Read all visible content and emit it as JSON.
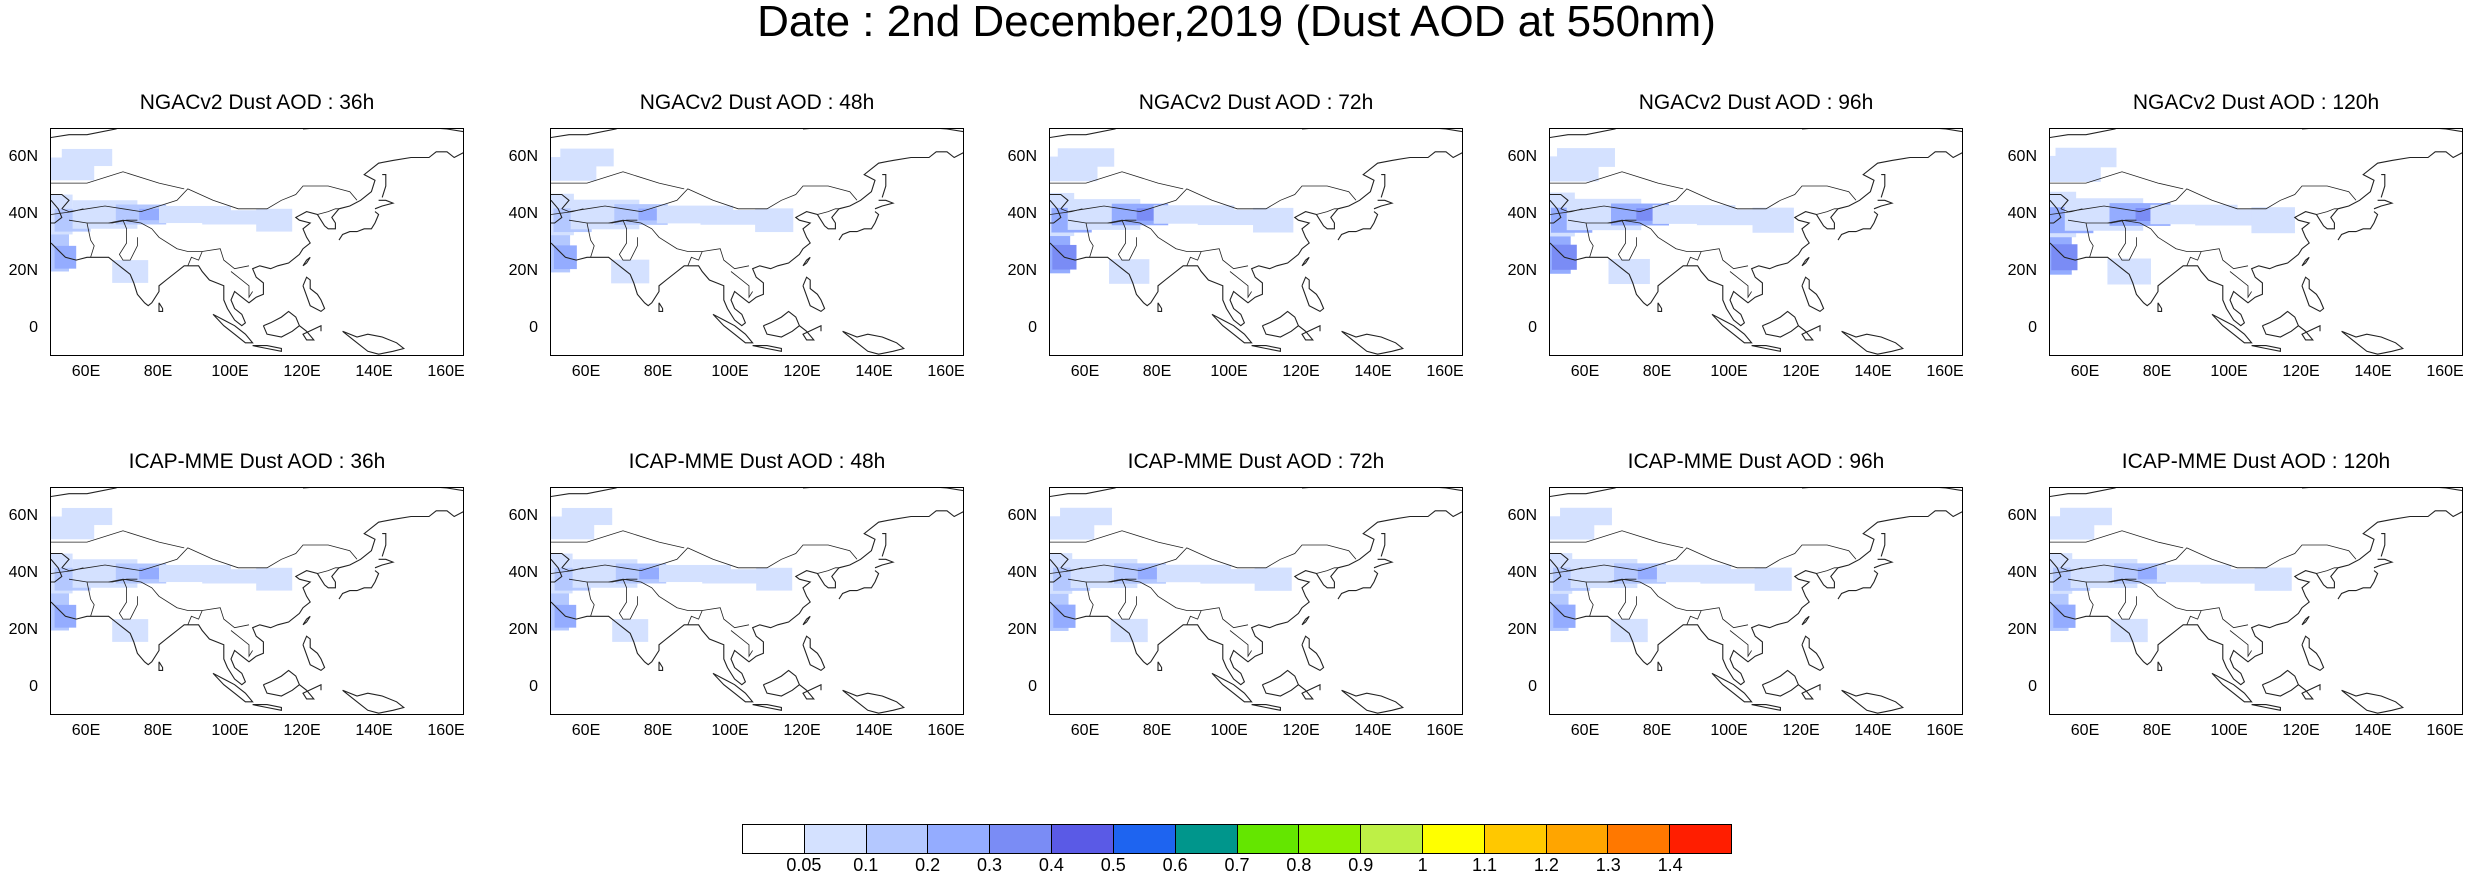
{
  "title": "Date : 2nd December,2019 (Dust AOD at 550nm)",
  "panels": [
    {
      "title": "NGACv2 Dust AOD : 36h",
      "row": 0,
      "col": 0,
      "extent": 1.0
    },
    {
      "title": "NGACv2 Dust AOD : 48h",
      "row": 0,
      "col": 1,
      "extent": 1.2
    },
    {
      "title": "NGACv2 Dust AOD : 72h",
      "row": 0,
      "col": 2,
      "extent": 1.4
    },
    {
      "title": "NGACv2 Dust AOD : 96h",
      "row": 0,
      "col": 3,
      "extent": 1.5
    },
    {
      "title": "NGACv2 Dust AOD : 120h",
      "row": 0,
      "col": 4,
      "extent": 1.7
    },
    {
      "title": "ICAP-MME Dust AOD : 36h",
      "row": 1,
      "col": 0,
      "extent": 1.0
    },
    {
      "title": "ICAP-MME Dust AOD : 48h",
      "row": 1,
      "col": 1,
      "extent": 1.0
    },
    {
      "title": "ICAP-MME Dust AOD : 72h",
      "row": 1,
      "col": 2,
      "extent": 1.1
    },
    {
      "title": "ICAP-MME Dust AOD : 96h",
      "row": 1,
      "col": 3,
      "extent": 1.1
    },
    {
      "title": "ICAP-MME Dust AOD : 120h",
      "row": 1,
      "col": 4,
      "extent": 1.1
    }
  ],
  "lon_ticks": [
    "60E",
    "80E",
    "100E",
    "120E",
    "140E",
    "160E"
  ],
  "lat_ticks": [
    "60N",
    "40N",
    "20N",
    "0"
  ],
  "colorbar": {
    "colors": [
      "#ffffff",
      "#d4e1ff",
      "#b4c8ff",
      "#94acff",
      "#7a8cf5",
      "#5a5ae6",
      "#1e64f0",
      "#00968c",
      "#64e600",
      "#8cf000",
      "#bef046",
      "#ffff00",
      "#ffc800",
      "#ffa500",
      "#ff7800",
      "#ff1e00"
    ],
    "labels": [
      "0.05",
      "0.1",
      "0.2",
      "0.3",
      "0.4",
      "0.5",
      "0.6",
      "0.7",
      "0.8",
      "0.9",
      "1",
      "1.1",
      "1.2",
      "1.3",
      "1.4"
    ]
  }
}
